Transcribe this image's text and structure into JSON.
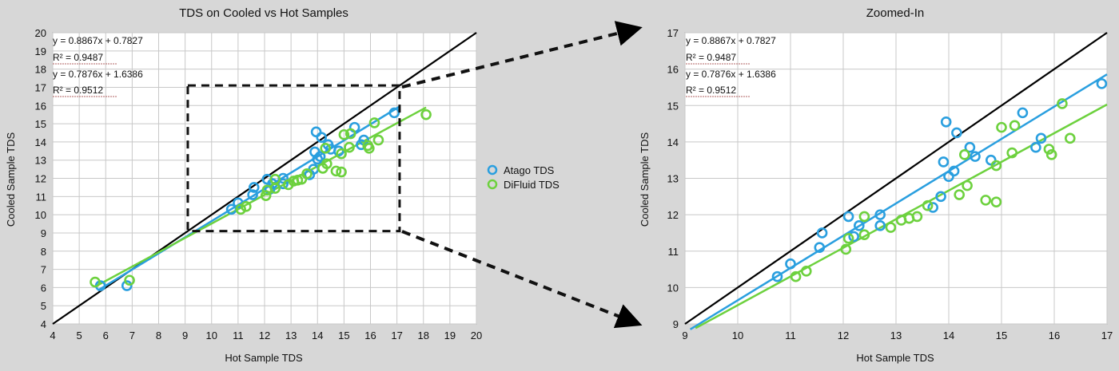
{
  "colors": {
    "background": "#d7d7d7",
    "plot_bg": "#ffffff",
    "grid": "#c8c8c8",
    "atago": "#2a9fdf",
    "difluid": "#6dd13e",
    "identity_line": "#000000",
    "equation_underline": "#b06060"
  },
  "legend": {
    "items": [
      {
        "label": "Atago TDS",
        "color": "#2a9fdf"
      },
      {
        "label": "DiFluid TDS",
        "color": "#6dd13e"
      }
    ]
  },
  "chart_data": [
    {
      "type": "scatter",
      "title": "TDS on Cooled vs Hot Samples",
      "xlabel": "Hot Sample TDS",
      "ylabel": "Cooled Sample TDS",
      "xlim": [
        4,
        20
      ],
      "ylim": [
        4,
        20
      ],
      "xticks": [
        "4",
        "5",
        "6",
        "7",
        "8",
        "9",
        "10",
        "11",
        "12",
        "13",
        "14",
        "15",
        "16",
        "17",
        "18",
        "19",
        "20"
      ],
      "yticks": [
        "4",
        "5",
        "6",
        "7",
        "8",
        "9",
        "10",
        "11",
        "12",
        "13",
        "14",
        "15",
        "16",
        "17",
        "18",
        "19",
        "20"
      ],
      "grid": true,
      "annotations": [
        "y = 0.8867x + 0.7827",
        "R² = 0.9487",
        "y = 0.7876x + 1.6386",
        "R² = 0.9512"
      ],
      "reference_line": {
        "from": [
          4,
          4
        ],
        "to": [
          20,
          20
        ]
      },
      "zoom_box": {
        "x": [
          9.1,
          17.1
        ],
        "y": [
          9.1,
          17.1
        ]
      },
      "series": [
        {
          "name": "Atago TDS",
          "trendline": {
            "slope": 0.8867,
            "intercept": 0.7827,
            "x_range": [
              5.7,
              17.1
            ]
          },
          "points": [
            [
              5.8,
              6.1
            ],
            [
              6.8,
              6.1
            ],
            [
              10.75,
              10.3
            ],
            [
              11.0,
              10.65
            ],
            [
              11.55,
              11.1
            ],
            [
              11.6,
              11.5
            ],
            [
              12.1,
              11.95
            ],
            [
              12.2,
              11.4
            ],
            [
              12.3,
              11.7
            ],
            [
              12.7,
              12.0
            ],
            [
              12.7,
              11.7
            ],
            [
              13.7,
              12.2
            ],
            [
              13.85,
              12.5
            ],
            [
              13.9,
              13.45
            ],
            [
              13.95,
              14.55
            ],
            [
              14.0,
              13.05
            ],
            [
              14.1,
              13.2
            ],
            [
              14.15,
              14.25
            ],
            [
              14.4,
              13.85
            ],
            [
              14.5,
              13.6
            ],
            [
              14.8,
              13.5
            ],
            [
              15.4,
              14.8
            ],
            [
              15.65,
              13.85
            ],
            [
              15.75,
              14.1
            ],
            [
              16.9,
              15.6
            ]
          ]
        },
        {
          "name": "DiFluid TDS",
          "trendline": {
            "slope": 0.7876,
            "intercept": 1.6386,
            "x_range": [
              5.6,
              18.1
            ]
          },
          "points": [
            [
              5.6,
              6.3
            ],
            [
              6.9,
              6.4
            ],
            [
              11.1,
              10.3
            ],
            [
              11.3,
              10.45
            ],
            [
              12.05,
              11.05
            ],
            [
              12.1,
              11.35
            ],
            [
              12.4,
              11.45
            ],
            [
              12.4,
              11.95
            ],
            [
              12.9,
              11.65
            ],
            [
              13.1,
              11.85
            ],
            [
              13.25,
              11.9
            ],
            [
              13.4,
              11.95
            ],
            [
              13.6,
              12.25
            ],
            [
              14.2,
              12.55
            ],
            [
              14.35,
              12.8
            ],
            [
              14.3,
              13.65
            ],
            [
              14.7,
              12.4
            ],
            [
              14.9,
              12.35
            ],
            [
              14.9,
              13.35
            ],
            [
              15.0,
              14.4
            ],
            [
              15.25,
              14.45
            ],
            [
              15.2,
              13.7
            ],
            [
              15.9,
              13.8
            ],
            [
              15.95,
              13.65
            ],
            [
              16.15,
              15.05
            ],
            [
              16.3,
              14.1
            ],
            [
              18.1,
              15.5
            ]
          ]
        }
      ]
    },
    {
      "type": "scatter",
      "title": "Zoomed-In",
      "xlabel": "Hot Sample TDS",
      "ylabel": "Cooled Sample TDS",
      "xlim": [
        9,
        17
      ],
      "ylim": [
        9,
        17
      ],
      "xticks": [
        "9",
        "10",
        "11",
        "12",
        "13",
        "14",
        "15",
        "16",
        "17"
      ],
      "yticks": [
        "9",
        "10",
        "11",
        "12",
        "13",
        "14",
        "15",
        "16",
        "17"
      ],
      "grid": true,
      "annotations": [
        "y = 0.8867x + 0.7827",
        "R² = 0.9487",
        "y = 0.7876x + 1.6386",
        "R² = 0.9512"
      ],
      "reference_line": {
        "from": [
          9,
          9
        ],
        "to": [
          17,
          17
        ]
      },
      "series": [
        {
          "name": "Atago TDS",
          "trendline": {
            "slope": 0.8867,
            "intercept": 0.7827,
            "x_range": [
              9.1,
              17.0
            ]
          },
          "points": [
            [
              10.75,
              10.3
            ],
            [
              11.0,
              10.65
            ],
            [
              11.55,
              11.1
            ],
            [
              11.6,
              11.5
            ],
            [
              12.1,
              11.95
            ],
            [
              12.2,
              11.4
            ],
            [
              12.3,
              11.7
            ],
            [
              12.7,
              12.0
            ],
            [
              12.7,
              11.7
            ],
            [
              13.7,
              12.2
            ],
            [
              13.85,
              12.5
            ],
            [
              13.9,
              13.45
            ],
            [
              13.95,
              14.55
            ],
            [
              14.0,
              13.05
            ],
            [
              14.1,
              13.2
            ],
            [
              14.15,
              14.25
            ],
            [
              14.4,
              13.85
            ],
            [
              14.5,
              13.6
            ],
            [
              14.8,
              13.5
            ],
            [
              15.4,
              14.8
            ],
            [
              15.65,
              13.85
            ],
            [
              15.75,
              14.1
            ],
            [
              16.9,
              15.6
            ]
          ]
        },
        {
          "name": "DiFluid TDS",
          "trendline": {
            "slope": 0.7876,
            "intercept": 1.6386,
            "x_range": [
              9.2,
              17.0
            ]
          },
          "points": [
            [
              11.1,
              10.3
            ],
            [
              11.3,
              10.45
            ],
            [
              12.05,
              11.05
            ],
            [
              12.1,
              11.35
            ],
            [
              12.4,
              11.45
            ],
            [
              12.4,
              11.95
            ],
            [
              12.9,
              11.65
            ],
            [
              13.1,
              11.85
            ],
            [
              13.25,
              11.9
            ],
            [
              13.4,
              11.95
            ],
            [
              13.6,
              12.25
            ],
            [
              14.2,
              12.55
            ],
            [
              14.35,
              12.8
            ],
            [
              14.3,
              13.65
            ],
            [
              14.7,
              12.4
            ],
            [
              14.9,
              12.35
            ],
            [
              14.9,
              13.35
            ],
            [
              15.0,
              14.4
            ],
            [
              15.25,
              14.45
            ],
            [
              15.2,
              13.7
            ],
            [
              15.9,
              13.8
            ],
            [
              15.95,
              13.65
            ],
            [
              16.15,
              15.05
            ],
            [
              16.3,
              14.1
            ]
          ]
        }
      ]
    }
  ]
}
